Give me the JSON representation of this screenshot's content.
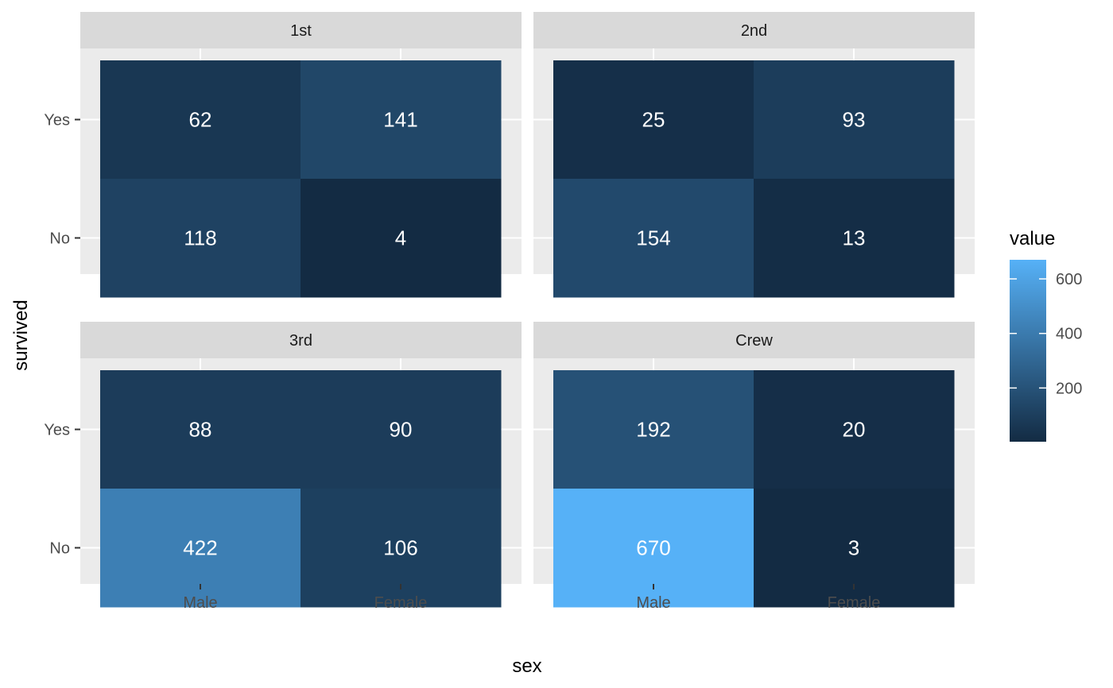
{
  "chart_data": {
    "type": "heatmap",
    "title": "",
    "xlabel": "sex",
    "ylabel": "survived",
    "x_categories": [
      "Male",
      "Female"
    ],
    "y_categories": [
      "Yes",
      "No"
    ],
    "facets": [
      {
        "label": "1st",
        "values": {
          "Yes": {
            "Male": 62,
            "Female": 141
          },
          "No": {
            "Male": 118,
            "Female": 4
          }
        }
      },
      {
        "label": "2nd",
        "values": {
          "Yes": {
            "Male": 25,
            "Female": 93
          },
          "No": {
            "Male": 154,
            "Female": 13
          }
        }
      },
      {
        "label": "3rd",
        "values": {
          "Yes": {
            "Male": 88,
            "Female": 90
          },
          "No": {
            "Male": 422,
            "Female": 106
          }
        }
      },
      {
        "label": "Crew",
        "values": {
          "Yes": {
            "Male": 192,
            "Female": 20
          },
          "No": {
            "Male": 670,
            "Female": 3
          }
        }
      }
    ],
    "legend": {
      "title": "value",
      "ticks": [
        200,
        400,
        600
      ],
      "range": [
        3,
        670
      ],
      "low_color": "#132B43",
      "high_color": "#56B1F7",
      "position": "right"
    },
    "colors": {
      "panel_bg": "#EBEBEB",
      "strip_bg": "#D9D9D9",
      "grid": "#FFFFFF",
      "label_text": "#FFFFFF",
      "axis_text": "#4D4D4D"
    }
  }
}
